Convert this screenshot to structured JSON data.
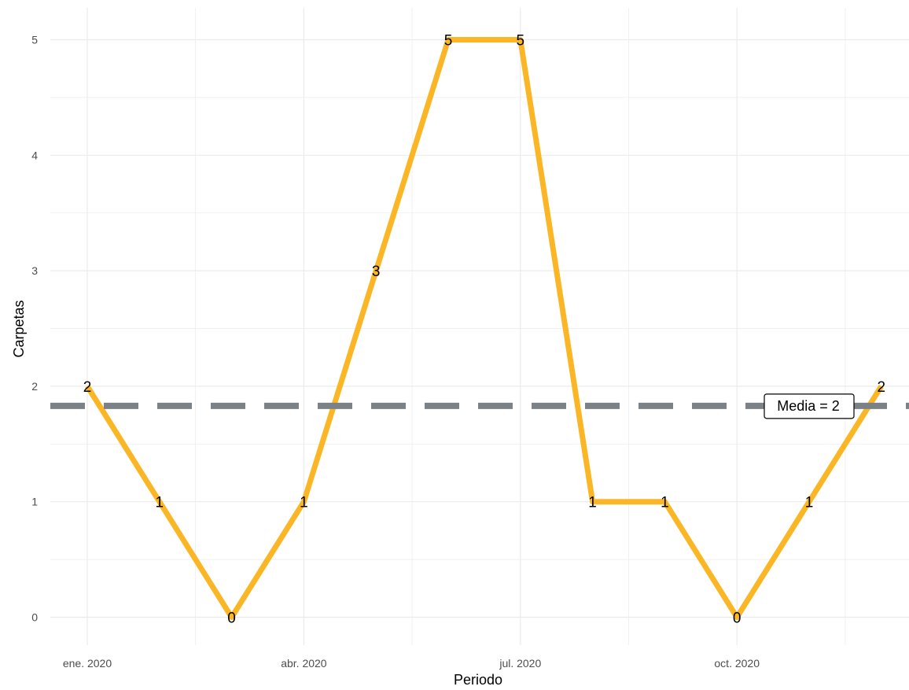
{
  "chart_data": {
    "type": "line",
    "title": "",
    "xlabel": "Periodo",
    "ylabel": "Carpetas",
    "x": [
      "2020-01",
      "2020-02",
      "2020-03",
      "2020-04",
      "2020-05",
      "2020-06",
      "2020-07",
      "2020-08",
      "2020-09",
      "2020-10",
      "2020-11",
      "2020-12"
    ],
    "x_tick_labels": [
      "ene. 2020",
      "abr. 2020",
      "jul. 2020",
      "oct. 2020"
    ],
    "x_tick_positions": [
      "2020-01",
      "2020-04",
      "2020-07",
      "2020-10"
    ],
    "y_ticks": [
      0,
      1,
      2,
      3,
      4,
      5
    ],
    "ylim": [
      -0.25,
      5.25
    ],
    "series": [
      {
        "values": [
          2,
          1,
          0,
          1,
          3,
          5,
          5,
          1,
          1,
          0,
          1,
          2
        ],
        "color": "#FBB626"
      }
    ],
    "mean_line": {
      "value": 1.83,
      "label": "Media = 2",
      "color": "#7A8187",
      "style": "dashed"
    },
    "grid": true,
    "legend": "none"
  }
}
